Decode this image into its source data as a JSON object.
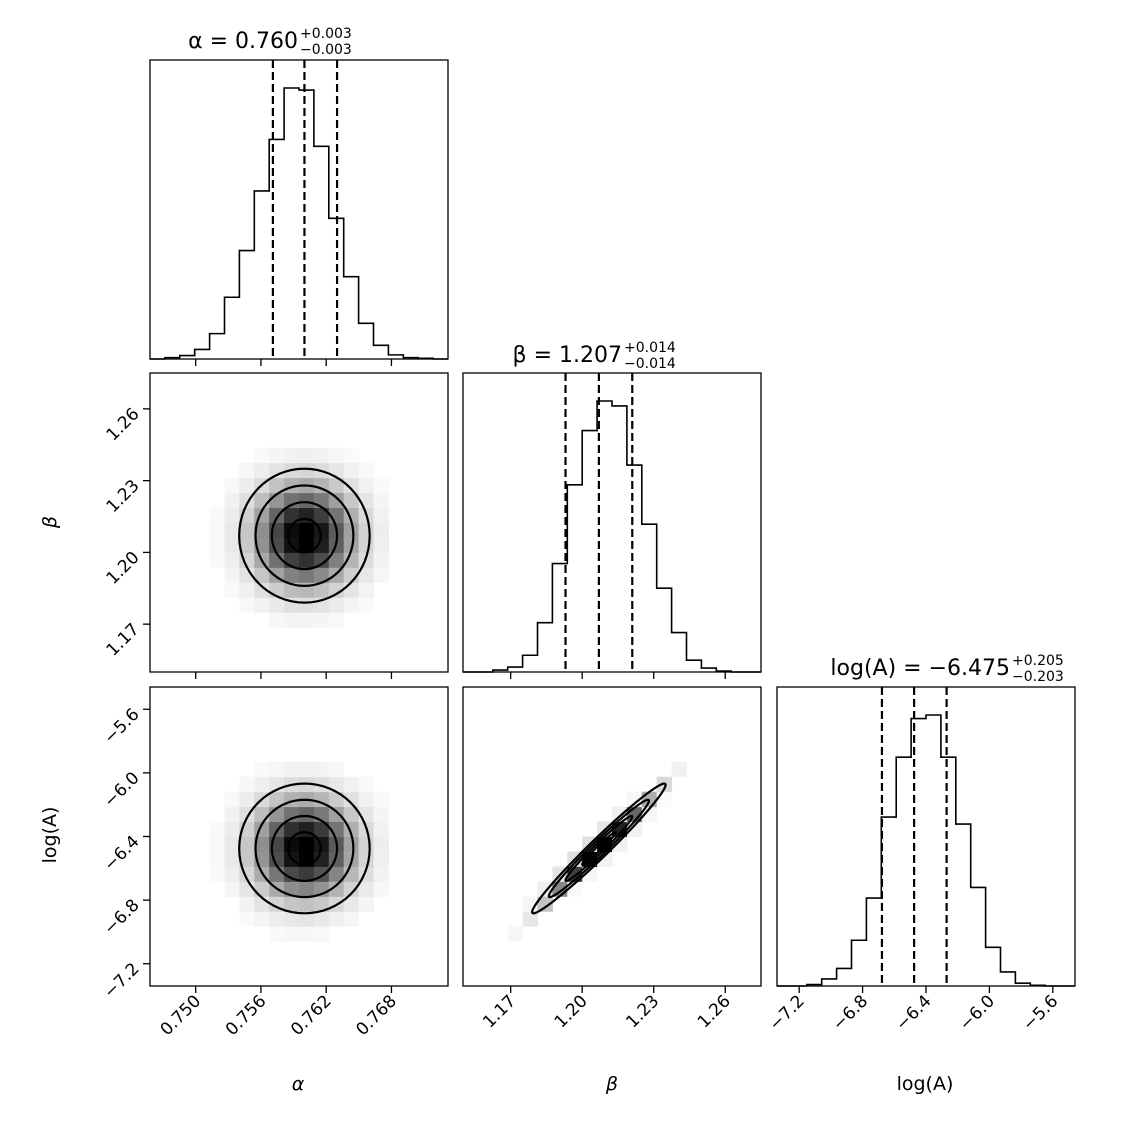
{
  "chart_data": {
    "type": "corner",
    "parameters": [
      "α",
      "β",
      "log(A)"
    ],
    "axis_labels": {
      "alpha": "α",
      "beta": "β",
      "logA": "log(A)"
    },
    "titles": [
      {
        "param": "α",
        "text": "α = 0.760",
        "plus": "+0.003",
        "minus": "−0.003"
      },
      {
        "param": "β",
        "text": "β = 1.207",
        "plus": "+0.014",
        "minus": "−0.014"
      },
      {
        "param": "log(A)",
        "text": "log(A) = −6.475",
        "plus": "+0.205",
        "minus": "−0.203"
      }
    ],
    "ranges": {
      "alpha": [
        0.7458,
        0.7732
      ],
      "beta": [
        1.15,
        1.275
      ],
      "logA": [
        -7.34,
        -5.46
      ]
    },
    "ticks": {
      "alpha": {
        "values": [
          0.75,
          0.756,
          0.762,
          0.768
        ],
        "labels": [
          "0.750",
          "0.756",
          "0.762",
          "0.768"
        ]
      },
      "beta": {
        "values": [
          1.17,
          1.2,
          1.23,
          1.26
        ],
        "labels": [
          "1.17",
          "1.20",
          "1.23",
          "1.26"
        ]
      },
      "logA": {
        "values": [
          -7.2,
          -6.8,
          -6.4,
          -6.0,
          -5.6
        ],
        "labels": [
          "−7.2",
          "−6.8",
          "−6.4",
          "−6.0",
          "−5.6"
        ]
      }
    },
    "quantiles": {
      "alpha": [
        0.7571,
        0.76,
        0.763
      ],
      "beta": [
        1.193,
        1.207,
        1.221
      ],
      "logA": [
        -6.678,
        -6.475,
        -6.27
      ]
    },
    "histograms": {
      "alpha": {
        "edges": [
          0.7458,
          0.74717,
          0.74854,
          0.74991,
          0.75128,
          0.75265,
          0.75402,
          0.75539,
          0.75676,
          0.75813,
          0.7595,
          0.76087,
          0.76224,
          0.76361,
          0.76498,
          0.76635,
          0.76772,
          0.76909,
          0.77046,
          0.77183,
          0.7732
        ],
        "counts": [
          0,
          2,
          5,
          14,
          37,
          90,
          158,
          245,
          320,
          395,
          392,
          310,
          205,
          120,
          52,
          20,
          6,
          2,
          1,
          0
        ]
      },
      "beta": {
        "edges": [
          1.15,
          1.15625,
          1.1625,
          1.16875,
          1.175,
          1.18125,
          1.1875,
          1.19375,
          1.2,
          1.20625,
          1.2125,
          1.21875,
          1.225,
          1.23125,
          1.2375,
          1.24375,
          1.25,
          1.25625,
          1.2625,
          1.26875,
          1.275
        ],
        "counts": [
          0,
          0,
          2,
          5,
          17,
          50,
          110,
          190,
          245,
          275,
          270,
          210,
          150,
          85,
          40,
          12,
          4,
          1,
          0,
          0
        ]
      },
      "logA": {
        "edges": [
          -7.34,
          -7.246,
          -7.152,
          -7.058,
          -6.964,
          -6.87,
          -6.776,
          -6.682,
          -6.588,
          -6.494,
          -6.4,
          -6.306,
          -6.212,
          -6.118,
          -6.024,
          -5.93,
          -5.836,
          -5.742,
          -5.648,
          -5.554,
          -5.46
        ],
        "counts": [
          0,
          0,
          2,
          10,
          25,
          65,
          125,
          240,
          325,
          380,
          385,
          325,
          230,
          140,
          55,
          20,
          4,
          1,
          0,
          0
        ]
      }
    },
    "joint": {
      "alpha_beta": {
        "center": [
          0.76,
          1.207
        ],
        "sigma": [
          0.003,
          0.014
        ],
        "rho": 0.0
      },
      "alpha_logA": {
        "center": [
          0.76,
          -6.475
        ],
        "sigma": [
          0.003,
          0.204
        ],
        "rho": 0.0
      },
      "beta_logA": {
        "center": [
          1.207,
          -6.475
        ],
        "sigma": [
          0.014,
          0.204
        ],
        "rho": 0.98
      }
    },
    "contour_levels_sigma": [
      0.5,
      1.0,
      1.5,
      2.0
    ],
    "grid": false,
    "legend": "none"
  }
}
